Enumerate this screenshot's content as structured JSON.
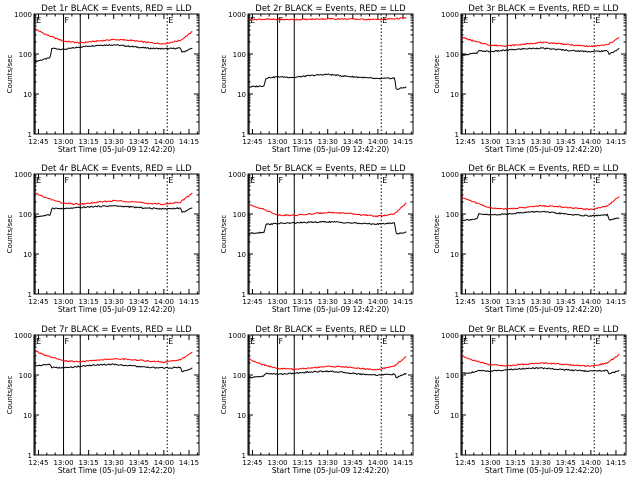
{
  "chart_data": [
    {
      "type": "line",
      "title": "Det 1r BLACK = Events, RED = LLD",
      "xlabel": "Start Time (05-Jul-09 12:42:20)",
      "ylabel": "Counts/sec",
      "yscale": "log",
      "ylim": [
        1,
        1000
      ],
      "xlim": [
        "12:42:20",
        "14:21:00"
      ],
      "x_ticks": [
        "12:45",
        "13:00",
        "13:15",
        "13:30",
        "13:45",
        "14:00",
        "14:15"
      ],
      "y_ticks": [
        "1",
        "10",
        "100",
        "1000"
      ],
      "markers": [
        {
          "label": "E",
          "time": "12:43",
          "style": "solid"
        },
        {
          "label": "F",
          "time": "13:00",
          "style": "solid"
        },
        {
          "label": "",
          "time": "13:10",
          "style": "solid"
        },
        {
          "label": "E",
          "time": "14:02",
          "style": "dotted"
        }
      ],
      "series": [
        {
          "name": "Events",
          "color": "#000000",
          "x": [
            "12:43",
            "12:52",
            "12:53",
            "13:00",
            "13:10",
            "13:20",
            "13:30",
            "13:40",
            "13:50",
            "14:00",
            "14:10",
            "14:11",
            "14:17"
          ],
          "y": [
            65,
            80,
            140,
            130,
            150,
            165,
            170,
            155,
            140,
            135,
            140,
            110,
            140
          ]
        },
        {
          "name": "LLD",
          "color": "#ff0000",
          "x": [
            "12:43",
            "12:50",
            "13:00",
            "13:10",
            "13:20",
            "13:30",
            "13:40",
            "13:50",
            "14:00",
            "14:10",
            "14:17"
          ],
          "y": [
            420,
            300,
            210,
            190,
            210,
            230,
            220,
            195,
            180,
            220,
            360
          ]
        }
      ]
    },
    {
      "type": "line",
      "title": "Det 2r BLACK = Events, RED = LLD",
      "xlabel": "Start Time (05-Jul-09 12:42:20)",
      "ylabel": "Counts/sec",
      "yscale": "log",
      "ylim": [
        1,
        1000
      ],
      "xlim": [
        "12:42:20",
        "14:21:00"
      ],
      "x_ticks": [
        "12:45",
        "13:00",
        "13:15",
        "13:30",
        "13:45",
        "14:00",
        "14:15"
      ],
      "y_ticks": [
        "1",
        "10",
        "100",
        "1000"
      ],
      "markers": [
        {
          "label": "E",
          "time": "12:43",
          "style": "solid"
        },
        {
          "label": "F",
          "time": "13:00",
          "style": "solid"
        },
        {
          "label": "",
          "time": "13:10",
          "style": "solid"
        },
        {
          "label": "E",
          "time": "14:02",
          "style": "dotted"
        }
      ],
      "series": [
        {
          "name": "Events",
          "color": "#000000",
          "x": [
            "12:43",
            "12:52",
            "12:53",
            "13:00",
            "13:10",
            "13:20",
            "13:30",
            "13:40",
            "13:50",
            "14:00",
            "14:10",
            "14:11",
            "14:17"
          ],
          "y": [
            15,
            16,
            25,
            27,
            26,
            29,
            31,
            28,
            26,
            24,
            25,
            13,
            15
          ]
        },
        {
          "name": "LLD",
          "color": "#ff0000",
          "x": [
            "12:43",
            "12:50",
            "13:00",
            "13:10",
            "13:20",
            "13:30",
            "13:40",
            "13:50",
            "14:00",
            "14:10",
            "14:17"
          ],
          "y": [
            720,
            740,
            730,
            725,
            740,
            760,
            750,
            740,
            730,
            760,
            800
          ]
        }
      ]
    },
    {
      "type": "line",
      "title": "Det 3r BLACK = Events, RED = LLD",
      "xlabel": "Start Time (05-Jul-09 12:42:20)",
      "ylabel": "Counts/sec",
      "yscale": "log",
      "ylim": [
        1,
        1000
      ],
      "xlim": [
        "12:42:20",
        "14:21:00"
      ],
      "x_ticks": [
        "12:45",
        "13:00",
        "13:15",
        "13:30",
        "13:45",
        "14:00",
        "14:15"
      ],
      "y_ticks": [
        "1",
        "10",
        "100",
        "1000"
      ],
      "markers": [
        {
          "label": "E",
          "time": "12:43",
          "style": "solid"
        },
        {
          "label": "F",
          "time": "13:00",
          "style": "solid"
        },
        {
          "label": "",
          "time": "13:10",
          "style": "solid"
        },
        {
          "label": "E",
          "time": "14:02",
          "style": "dotted"
        }
      ],
      "series": [
        {
          "name": "Events",
          "color": "#000000",
          "x": [
            "12:43",
            "12:52",
            "12:53",
            "13:00",
            "13:10",
            "13:20",
            "13:30",
            "13:40",
            "13:50",
            "14:00",
            "14:10",
            "14:11",
            "14:17"
          ],
          "y": [
            95,
            105,
            120,
            115,
            125,
            135,
            140,
            130,
            120,
            115,
            120,
            100,
            135
          ]
        },
        {
          "name": "LLD",
          "color": "#ff0000",
          "x": [
            "12:43",
            "12:50",
            "13:00",
            "13:10",
            "13:20",
            "13:30",
            "13:40",
            "13:50",
            "14:00",
            "14:10",
            "14:17"
          ],
          "y": [
            260,
            210,
            165,
            160,
            175,
            195,
            185,
            165,
            155,
            170,
            260
          ]
        }
      ]
    },
    {
      "type": "line",
      "title": "Det 4r BLACK = Events, RED = LLD",
      "xlabel": "Start Time (05-Jul-09 12:42:20)",
      "ylabel": "Counts/sec",
      "yscale": "log",
      "ylim": [
        1,
        1000
      ],
      "xlim": [
        "12:42:20",
        "14:21:00"
      ],
      "x_ticks": [
        "12:45",
        "13:00",
        "13:15",
        "13:30",
        "13:45",
        "14:00",
        "14:15"
      ],
      "y_ticks": [
        "1",
        "10",
        "100",
        "1000"
      ],
      "markers": [
        {
          "label": "E",
          "time": "12:43",
          "style": "solid"
        },
        {
          "label": "F",
          "time": "13:00",
          "style": "solid"
        },
        {
          "label": "",
          "time": "13:10",
          "style": "solid"
        },
        {
          "label": "E",
          "time": "14:02",
          "style": "dotted"
        }
      ],
      "series": [
        {
          "name": "Events",
          "color": "#000000",
          "x": [
            "12:43",
            "12:52",
            "12:53",
            "13:00",
            "13:10",
            "13:20",
            "13:30",
            "13:40",
            "13:50",
            "14:00",
            "14:10",
            "14:11",
            "14:17"
          ],
          "y": [
            85,
            95,
            140,
            135,
            145,
            155,
            160,
            150,
            140,
            135,
            140,
            110,
            140
          ]
        },
        {
          "name": "LLD",
          "color": "#ff0000",
          "x": [
            "12:43",
            "12:50",
            "13:00",
            "13:10",
            "13:20",
            "13:30",
            "13:40",
            "13:50",
            "14:00",
            "14:10",
            "14:17"
          ],
          "y": [
            330,
            250,
            185,
            175,
            195,
            215,
            205,
            185,
            175,
            200,
            330
          ]
        }
      ]
    },
    {
      "type": "line",
      "title": "Det 5r BLACK = Events, RED = LLD",
      "xlabel": "Start Time (05-Jul-09 12:42:20)",
      "ylabel": "Counts/sec",
      "yscale": "log",
      "ylim": [
        1,
        1000
      ],
      "xlim": [
        "12:42:20",
        "14:21:00"
      ],
      "x_ticks": [
        "12:45",
        "13:00",
        "13:15",
        "13:30",
        "13:45",
        "14:00",
        "14:15"
      ],
      "y_ticks": [
        "1",
        "10",
        "100",
        "1000"
      ],
      "markers": [
        {
          "label": "E",
          "time": "12:43",
          "style": "solid"
        },
        {
          "label": "F",
          "time": "13:00",
          "style": "solid"
        },
        {
          "label": "",
          "time": "13:10",
          "style": "solid"
        },
        {
          "label": "E",
          "time": "14:02",
          "style": "dotted"
        }
      ],
      "series": [
        {
          "name": "Events",
          "color": "#000000",
          "x": [
            "12:43",
            "12:52",
            "12:53",
            "13:00",
            "13:10",
            "13:20",
            "13:30",
            "13:40",
            "13:50",
            "14:00",
            "14:10",
            "14:11",
            "14:17"
          ],
          "y": [
            33,
            35,
            55,
            58,
            60,
            62,
            64,
            61,
            58,
            56,
            60,
            32,
            35
          ]
        },
        {
          "name": "LLD",
          "color": "#ff0000",
          "x": [
            "12:43",
            "12:50",
            "13:00",
            "13:10",
            "13:20",
            "13:30",
            "13:40",
            "13:50",
            "14:00",
            "14:10",
            "14:17"
          ],
          "y": [
            170,
            140,
            95,
            92,
            100,
            110,
            105,
            95,
            88,
            100,
            190
          ]
        }
      ]
    },
    {
      "type": "line",
      "title": "Det 6r BLACK = Events, RED = LLD",
      "xlabel": "Start Time (05-Jul-09 12:42:20)",
      "ylabel": "Counts/sec",
      "yscale": "log",
      "ylim": [
        1,
        1000
      ],
      "xlim": [
        "12:42:20",
        "14:21:00"
      ],
      "x_ticks": [
        "12:45",
        "13:00",
        "13:15",
        "13:30",
        "13:45",
        "14:00",
        "14:15"
      ],
      "y_ticks": [
        "1",
        "10",
        "100",
        "1000"
      ],
      "markers": [
        {
          "label": "E",
          "time": "12:43",
          "style": "solid"
        },
        {
          "label": "F",
          "time": "13:00",
          "style": "solid"
        },
        {
          "label": "",
          "time": "13:10",
          "style": "solid"
        },
        {
          "label": "E",
          "time": "14:02",
          "style": "dotted"
        }
      ],
      "series": [
        {
          "name": "Events",
          "color": "#000000",
          "x": [
            "12:43",
            "12:52",
            "12:53",
            "13:00",
            "13:10",
            "13:20",
            "13:30",
            "13:40",
            "13:50",
            "14:00",
            "14:10",
            "14:11",
            "14:17"
          ],
          "y": [
            70,
            75,
            100,
            95,
            100,
            110,
            115,
            105,
            95,
            90,
            95,
            70,
            80
          ]
        },
        {
          "name": "LLD",
          "color": "#ff0000",
          "x": [
            "12:43",
            "12:50",
            "13:00",
            "13:10",
            "13:20",
            "13:30",
            "13:40",
            "13:50",
            "14:00",
            "14:10",
            "14:17"
          ],
          "y": [
            260,
            200,
            140,
            135,
            145,
            160,
            155,
            140,
            130,
            160,
            280
          ]
        }
      ]
    },
    {
      "type": "line",
      "title": "Det 7r BLACK = Events, RED = LLD",
      "xlabel": "Start Time (05-Jul-09 12:42:20)",
      "ylabel": "Counts/sec",
      "yscale": "log",
      "ylim": [
        1,
        1000
      ],
      "xlim": [
        "12:42:20",
        "14:21:00"
      ],
      "x_ticks": [
        "12:45",
        "13:00",
        "13:15",
        "13:30",
        "13:45",
        "14:00",
        "14:15"
      ],
      "y_ticks": [
        "1",
        "10",
        "100",
        "1000"
      ],
      "markers": [
        {
          "label": "E",
          "time": "12:43",
          "style": "solid"
        },
        {
          "label": "F",
          "time": "13:00",
          "style": "solid"
        },
        {
          "label": "",
          "time": "13:10",
          "style": "solid"
        },
        {
          "label": "E",
          "time": "14:02",
          "style": "dotted"
        }
      ],
      "series": [
        {
          "name": "Events",
          "color": "#000000",
          "x": [
            "12:43",
            "12:52",
            "12:53",
            "13:00",
            "13:10",
            "13:20",
            "13:30",
            "13:40",
            "13:50",
            "14:00",
            "14:10",
            "14:11",
            "14:17"
          ],
          "y": [
            170,
            185,
            155,
            150,
            165,
            180,
            185,
            170,
            155,
            150,
            155,
            120,
            150
          ]
        },
        {
          "name": "LLD",
          "color": "#ff0000",
          "x": [
            "12:43",
            "12:50",
            "13:00",
            "13:10",
            "13:20",
            "13:30",
            "13:40",
            "13:50",
            "14:00",
            "14:10",
            "14:17"
          ],
          "y": [
            400,
            300,
            225,
            215,
            235,
            255,
            245,
            225,
            210,
            240,
            370
          ]
        }
      ]
    },
    {
      "type": "line",
      "title": "Det 8r BLACK = Events, RED = LLD",
      "xlabel": "Start Time (05-Jul-09 12:42:20)",
      "ylabel": "Counts/sec",
      "yscale": "log",
      "ylim": [
        1,
        1000
      ],
      "xlim": [
        "12:42:20",
        "14:21:00"
      ],
      "x_ticks": [
        "12:45",
        "13:00",
        "13:15",
        "13:30",
        "13:45",
        "14:00",
        "14:15"
      ],
      "y_ticks": [
        "1",
        "10",
        "100",
        "1000"
      ],
      "markers": [
        {
          "label": "E",
          "time": "12:43",
          "style": "solid"
        },
        {
          "label": "F",
          "time": "13:00",
          "style": "solid"
        },
        {
          "label": "",
          "time": "13:10",
          "style": "solid"
        },
        {
          "label": "E",
          "time": "14:02",
          "style": "dotted"
        }
      ],
      "series": [
        {
          "name": "Events",
          "color": "#000000",
          "x": [
            "12:43",
            "12:52",
            "12:53",
            "13:00",
            "13:10",
            "13:20",
            "13:30",
            "13:40",
            "13:50",
            "14:00",
            "14:10",
            "14:11",
            "14:17"
          ],
          "y": [
            85,
            95,
            110,
            105,
            110,
            120,
            125,
            115,
            105,
            100,
            105,
            85,
            110
          ]
        },
        {
          "name": "LLD",
          "color": "#ff0000",
          "x": [
            "12:43",
            "12:50",
            "13:00",
            "13:10",
            "13:20",
            "13:30",
            "13:40",
            "13:50",
            "14:00",
            "14:10",
            "14:17"
          ],
          "y": [
            250,
            190,
            145,
            140,
            150,
            165,
            160,
            145,
            135,
            170,
            290
          ]
        }
      ]
    },
    {
      "type": "line",
      "title": "Det 9r BLACK = Events, RED = LLD",
      "xlabel": "Start Time (05-Jul-09 12:42:20)",
      "ylabel": "Counts/sec",
      "yscale": "log",
      "ylim": [
        1,
        1000
      ],
      "xlim": [
        "12:42:20",
        "14:21:00"
      ],
      "x_ticks": [
        "12:45",
        "13:00",
        "13:15",
        "13:30",
        "13:45",
        "14:00",
        "14:15"
      ],
      "y_ticks": [
        "1",
        "10",
        "100",
        "1000"
      ],
      "markers": [
        {
          "label": "E",
          "time": "12:43",
          "style": "solid"
        },
        {
          "label": "F",
          "time": "13:00",
          "style": "solid"
        },
        {
          "label": "",
          "time": "13:10",
          "style": "solid"
        },
        {
          "label": "E",
          "time": "14:02",
          "style": "dotted"
        }
      ],
      "series": [
        {
          "name": "Events",
          "color": "#000000",
          "x": [
            "12:43",
            "12:52",
            "12:53",
            "13:00",
            "13:10",
            "13:20",
            "13:30",
            "13:40",
            "13:50",
            "14:00",
            "14:10",
            "14:11",
            "14:17"
          ],
          "y": [
            110,
            120,
            130,
            125,
            135,
            145,
            150,
            140,
            130,
            125,
            130,
            105,
            130
          ]
        },
        {
          "name": "LLD",
          "color": "#ff0000",
          "x": [
            "12:43",
            "12:50",
            "13:00",
            "13:10",
            "13:20",
            "13:30",
            "13:40",
            "13:50",
            "14:00",
            "14:10",
            "14:17"
          ],
          "y": [
            300,
            230,
            180,
            170,
            185,
            200,
            190,
            175,
            165,
            200,
            330
          ]
        }
      ]
    }
  ]
}
